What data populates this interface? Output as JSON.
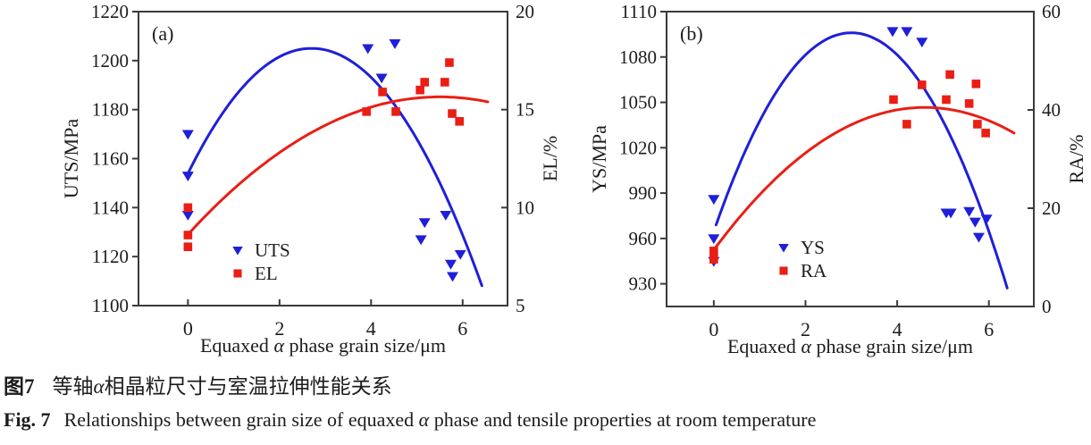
{
  "colors": {
    "series_blue": "#1f1fd9",
    "series_red": "#ea1e14",
    "axis": "#3a3a3a",
    "text": "#1c1c1c"
  },
  "caption": {
    "zh": {
      "label": "图7",
      "pre": "等轴",
      "alpha": "α",
      "post": "相晶粒尺寸与室温拉伸性能关系"
    },
    "en": {
      "label": "Fig. 7",
      "pre": "Relationships between grain size of equaxed ",
      "alpha": "α",
      "post": " phase and tensile properties at room temperature"
    }
  },
  "chart_data": [
    {
      "type": "scatter",
      "panel_label": "(a)",
      "grid": false,
      "legend_position": "inside-lower-left",
      "x_axis": {
        "title_parts": [
          "Equaxed ",
          "α",
          " phase grain size/μm"
        ],
        "range": [
          -1.08,
          6.98
        ],
        "ticks": [
          0,
          2,
          4,
          6
        ]
      },
      "left_axis": {
        "title": "UTS/MPa",
        "range": [
          1100,
          1220
        ],
        "ticks": [
          1100,
          1120,
          1140,
          1160,
          1180,
          1200,
          1220
        ]
      },
      "right_axis": {
        "title": "EL/%",
        "range": [
          5,
          20
        ],
        "ticks": [
          5,
          10,
          15,
          20
        ]
      },
      "series": [
        {
          "name": "UTS",
          "axis": "left",
          "marker": "triangle-down",
          "color": "#1f1fd9",
          "points": [
            [
              0,
              1170
            ],
            [
              0,
              1153
            ],
            [
              0,
              1137
            ],
            [
              3.93,
              1205
            ],
            [
              4.23,
              1193
            ],
            [
              4.52,
              1207
            ],
            [
              5.09,
              1127
            ],
            [
              5.17,
              1134
            ],
            [
              5.63,
              1137
            ],
            [
              5.74,
              1117
            ],
            [
              5.78,
              1112
            ],
            [
              5.95,
              1121
            ]
          ]
        },
        {
          "name": "EL",
          "axis": "right",
          "marker": "square",
          "color": "#ea1e14",
          "points": [
            [
              0,
              10
            ],
            [
              0,
              8.6
            ],
            [
              0,
              8
            ],
            [
              3.9,
              14.9
            ],
            [
              4.25,
              15.9
            ],
            [
              4.54,
              14.9
            ],
            [
              5.07,
              16
            ],
            [
              5.17,
              16.4
            ],
            [
              5.61,
              16.4
            ],
            [
              5.71,
              17.4
            ],
            [
              5.77,
              14.8
            ],
            [
              5.93,
              14.4
            ]
          ]
        }
      ],
      "fit_curves": [
        {
          "name": "UTS fit",
          "axis": "left",
          "color": "#1f1fd9",
          "vertex": [
            2.7,
            1205
          ],
          "coef": -7.0,
          "x_range": [
            0.02,
            6.42
          ]
        },
        {
          "name": "EL fit",
          "axis": "right",
          "color": "#ea1e14",
          "vertex": [
            5.5,
            15.65
          ],
          "coef": -0.232,
          "x_range": [
            0.05,
            6.55
          ]
        }
      ]
    },
    {
      "type": "scatter",
      "panel_label": "(b)",
      "grid": false,
      "legend_position": "inside-lower-left",
      "x_axis": {
        "title_parts": [
          "Equaxed ",
          "α",
          " phase grain size/μm"
        ],
        "range": [
          -1.03,
          6.98
        ],
        "ticks": [
          0,
          2,
          4,
          6
        ]
      },
      "left_axis": {
        "title": "YS/MPa",
        "range": [
          915,
          1110
        ],
        "ticks": [
          930,
          960,
          990,
          1020,
          1050,
          1080,
          1110
        ]
      },
      "right_axis": {
        "title": "RA/%",
        "range": [
          0,
          60
        ],
        "ticks": [
          0,
          20,
          40,
          60
        ]
      },
      "series": [
        {
          "name": "YS",
          "axis": "left",
          "marker": "triangle-down",
          "color": "#1f1fd9",
          "points": [
            [
              0,
              986
            ],
            [
              0,
              960
            ],
            [
              0,
              945
            ],
            [
              3.9,
              1097
            ],
            [
              4.21,
              1097
            ],
            [
              4.54,
              1090
            ],
            [
              5.07,
              977
            ],
            [
              5.17,
              977
            ],
            [
              5.57,
              978
            ],
            [
              5.7,
              971
            ],
            [
              5.78,
              961
            ],
            [
              5.95,
              973
            ]
          ]
        },
        {
          "name": "RA",
          "axis": "right",
          "marker": "square",
          "color": "#ea1e14",
          "points": [
            [
              0,
              11.3
            ],
            [
              0,
              9.6
            ],
            [
              3.92,
              42.1
            ],
            [
              4.21,
              37.1
            ],
            [
              4.54,
              45.1
            ],
            [
              5.07,
              42.1
            ],
            [
              5.15,
              47.2
            ],
            [
              5.57,
              41.3
            ],
            [
              5.72,
              45.3
            ],
            [
              5.75,
              37.1
            ],
            [
              5.93,
              35.3
            ]
          ]
        }
      ],
      "fit_curves": [
        {
          "name": "YS fit",
          "axis": "left",
          "color": "#1f1fd9",
          "vertex": [
            3.0,
            1096
          ],
          "coef": -14.6,
          "x_range": [
            0.05,
            6.4
          ]
        },
        {
          "name": "RA fit",
          "axis": "right",
          "color": "#ea1e14",
          "vertex": [
            4.6,
            40.5
          ],
          "coef": -1.37,
          "x_range": [
            0.05,
            6.55
          ]
        }
      ]
    }
  ]
}
